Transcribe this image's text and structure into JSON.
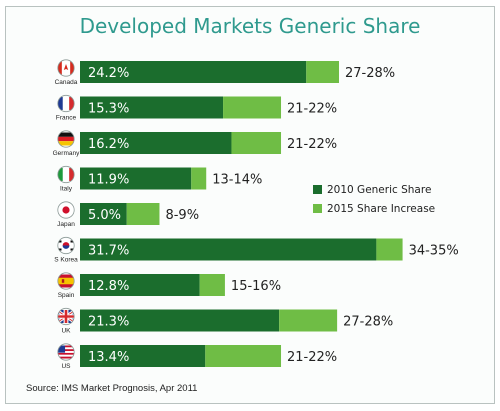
{
  "title": "Developed Markets Generic Share",
  "source": "Source: IMS Market Prognosis, Apr 2011",
  "colors": {
    "base": "#1b6d2d",
    "increase": "#6fbd45",
    "title": "#2f9a8e",
    "frame": "#b9c2c0"
  },
  "chart_data": {
    "type": "bar",
    "orientation": "horizontal",
    "stacked": true,
    "title": "Developed Markets Generic Share",
    "categories": [
      "Canada",
      "France",
      "Germany",
      "Italy",
      "Japan",
      "S Korea",
      "Spain",
      "UK",
      "US"
    ],
    "series": [
      {
        "name": "2010 Generic Share",
        "values": [
          24.2,
          15.3,
          16.2,
          11.9,
          5.0,
          31.7,
          12.8,
          21.3,
          13.4
        ],
        "labels": [
          "24.2%",
          "15.3%",
          "16.2%",
          "11.9%",
          "5.0%",
          "31.7%",
          "12.8%",
          "21.3%",
          "13.4%"
        ]
      },
      {
        "name": "2015 Share Increase",
        "values": [
          3.5,
          6.2,
          5.3,
          1.6,
          3.5,
          2.8,
          2.7,
          6.2,
          8.1
        ]
      }
    ],
    "end_labels": [
      "27-28%",
      "21-22%",
      "21-22%",
      "13-14%",
      "8-9%",
      "34-35%",
      "15-16%",
      "27-28%",
      "21-22%"
    ],
    "flags": [
      "canada",
      "france",
      "germany",
      "italy",
      "japan",
      "south-korea",
      "spain",
      "uk",
      "us"
    ],
    "xlim": [
      0,
      35
    ],
    "legend_position": "right",
    "grid": false
  }
}
